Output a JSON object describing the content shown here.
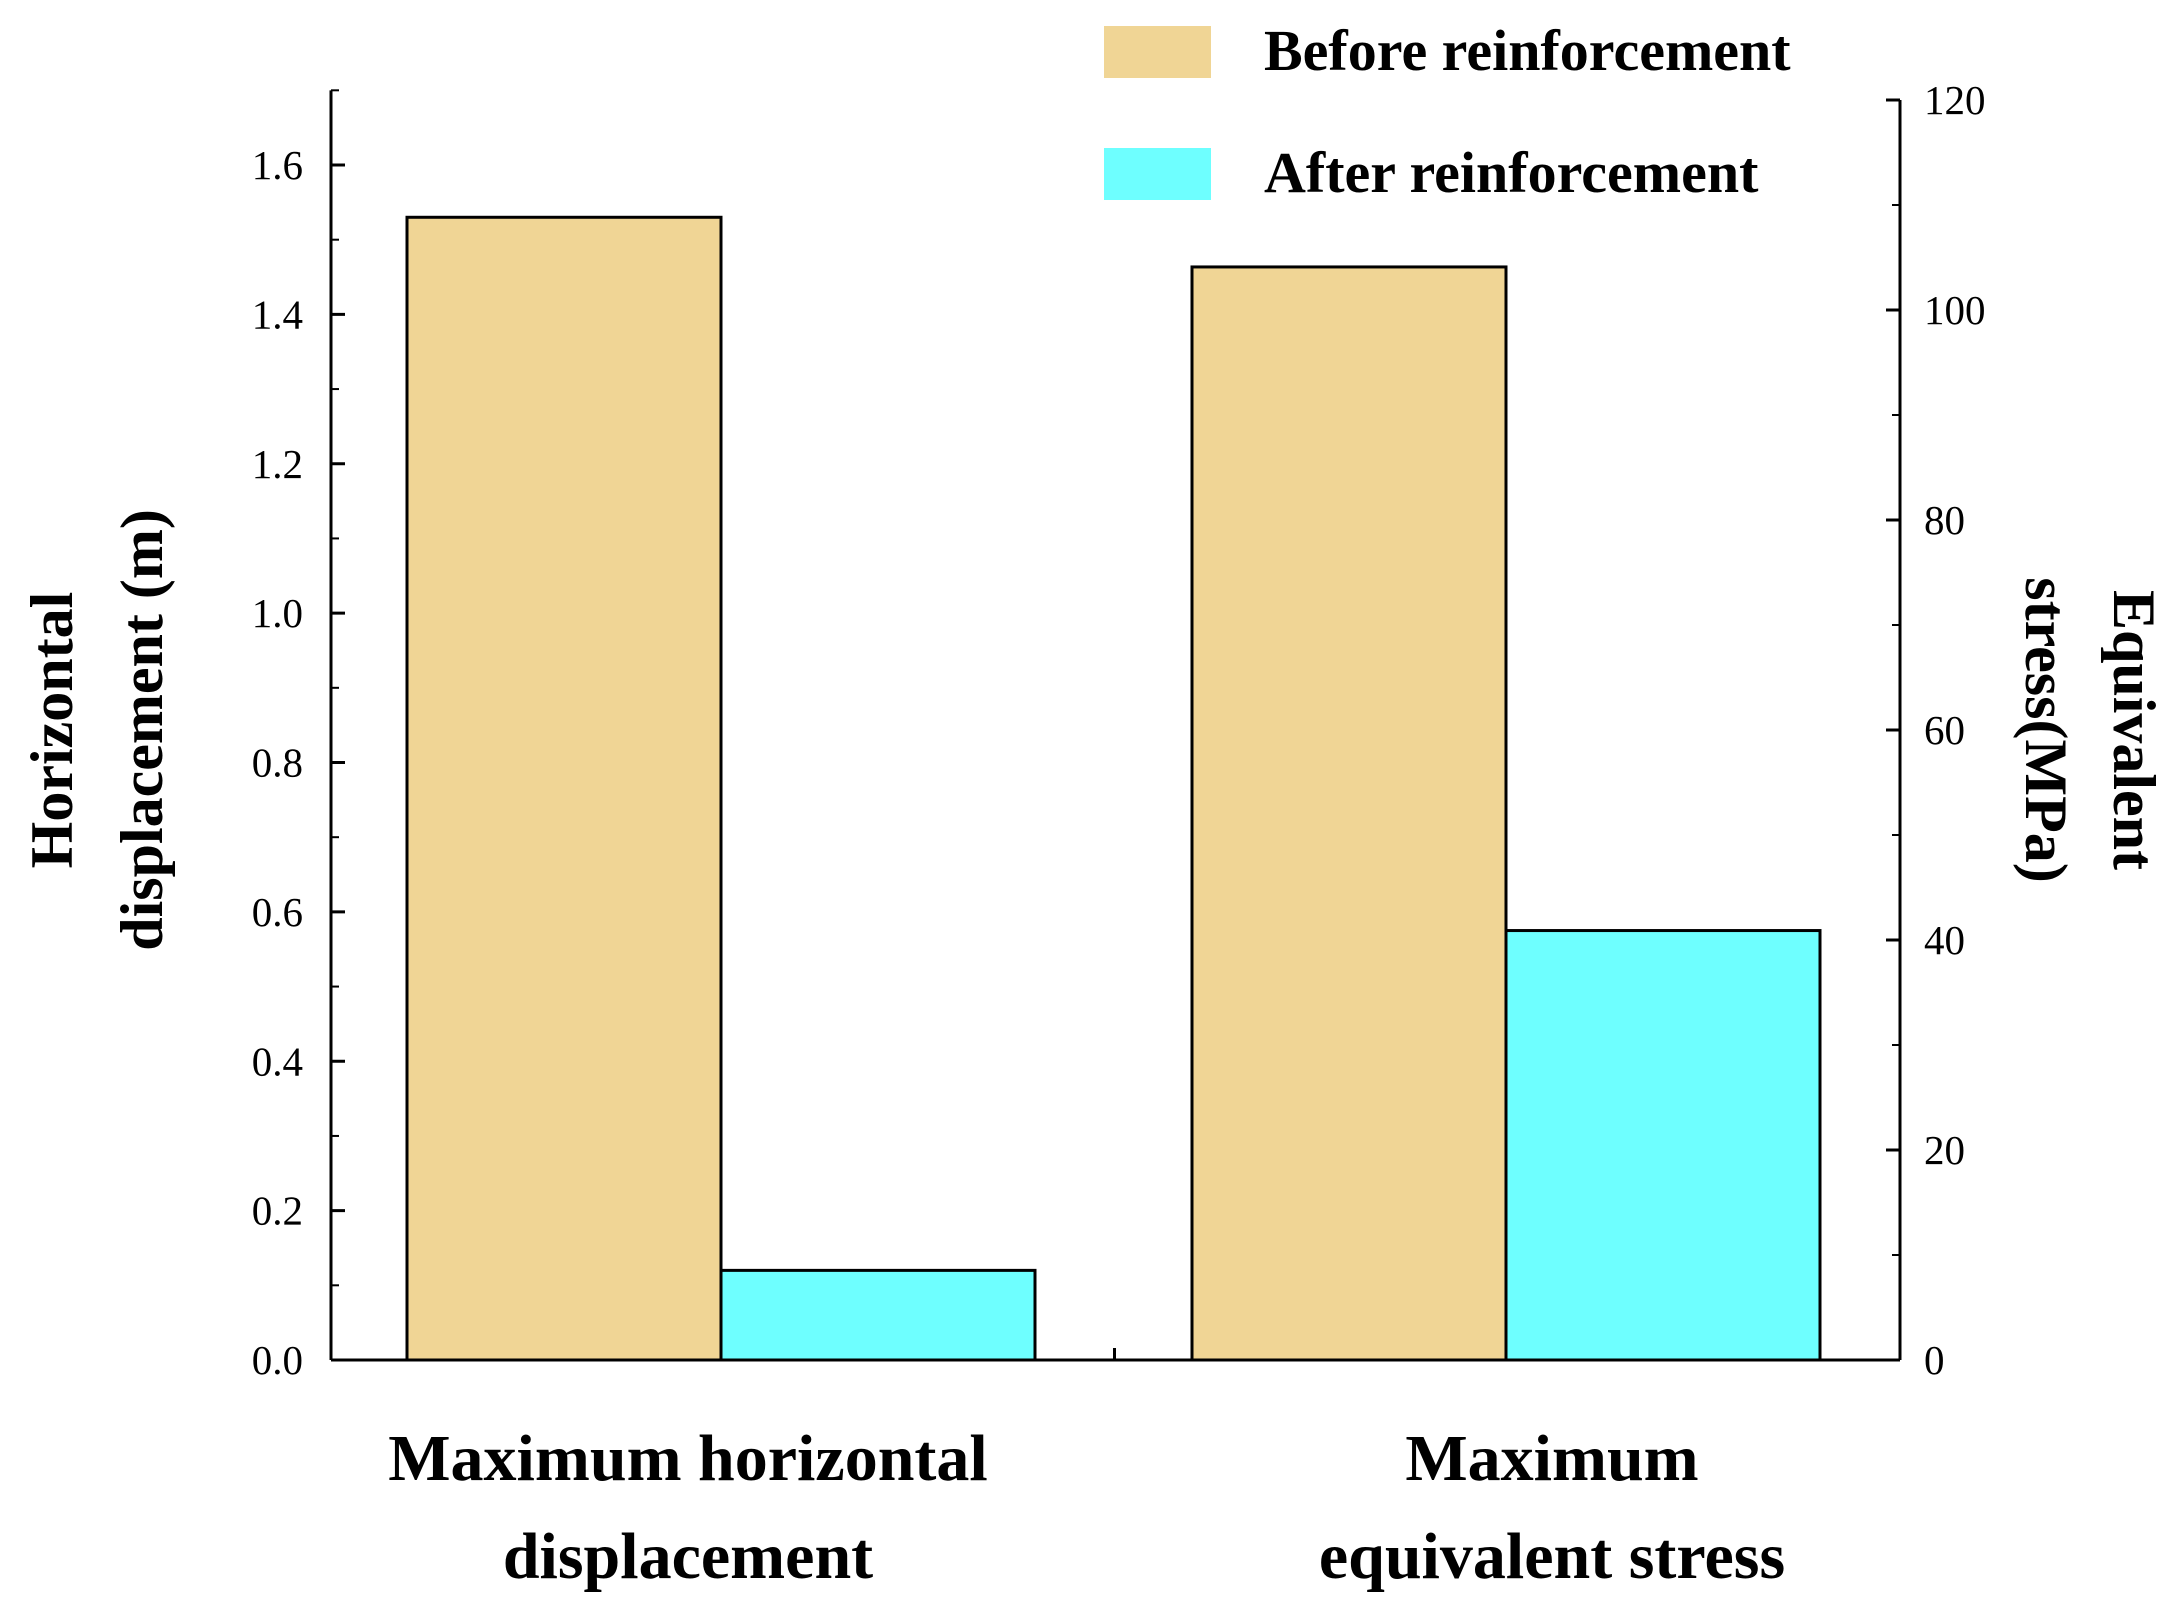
{
  "chart_data": {
    "type": "bar",
    "categories": [
      [
        "Maximum horizontal",
        "displacement"
      ],
      [
        "Maximum",
        "equivalent stress"
      ]
    ],
    "series": [
      {
        "name": "Before reinforcement",
        "color": "#F0D595",
        "values": [
          1.53,
          104.1
        ]
      },
      {
        "name": "After reinforcement",
        "color": "#6EFFFF",
        "values": [
          0.12,
          40.9
        ]
      }
    ],
    "left_axis": {
      "title": [
        "Horizontal",
        "displacement (m)"
      ],
      "range": [
        0,
        1.7
      ],
      "ticks": [
        "0.0",
        "0.2",
        "0.4",
        "0.6",
        "0.8",
        "1.0",
        "1.2",
        "1.4",
        "1.6"
      ]
    },
    "right_axis": {
      "title": [
        "Equivalent",
        "stress(MPa)"
      ],
      "range": [
        0,
        120
      ],
      "ticks": [
        "0",
        "20",
        "40",
        "60",
        "80",
        "100",
        "120"
      ]
    },
    "grid": false,
    "legend_position": "top-right",
    "note": "First category plotted on left axis, second category on right axis"
  }
}
